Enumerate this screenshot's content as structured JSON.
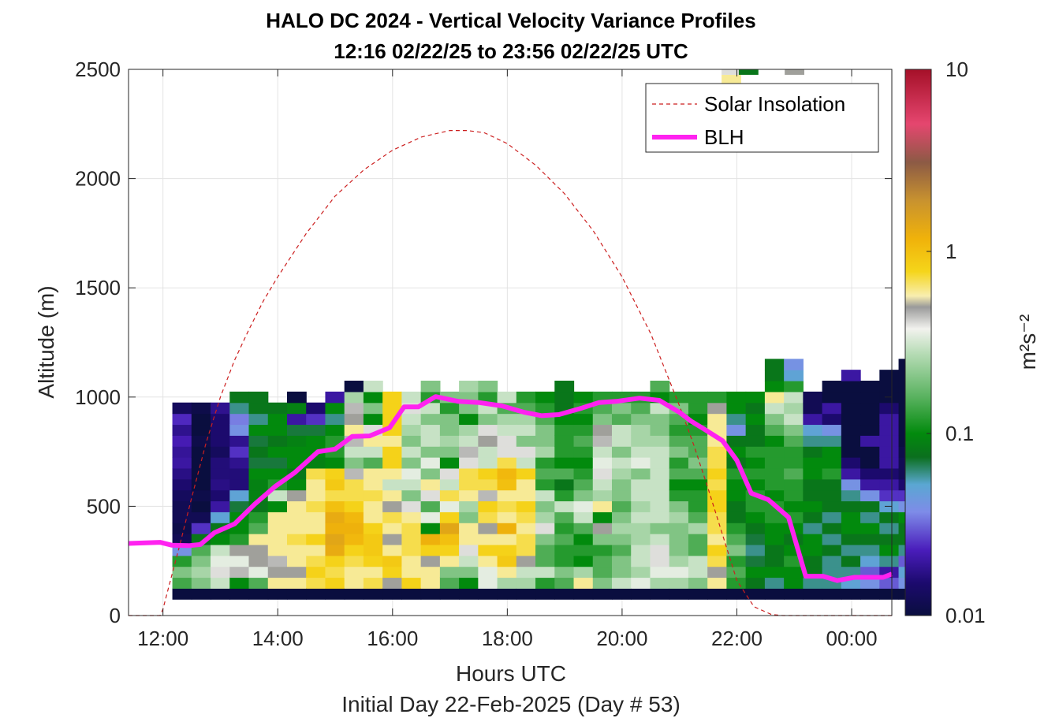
{
  "chart_data": {
    "type": "heatmap",
    "title": "HALO DC 2024 - Vertical Velocity Variance Profiles",
    "subtitle": "12:16 02/22/25 to 23:56 02/22/25  UTC",
    "xlabel": "Hours UTC",
    "xlabel2": "Initial Day 22-Feb-2025 (Day # 53)",
    "ylabel": "Altitude (m)",
    "x_unit": "hours UTC",
    "xlim": [
      11.4,
      24.7
    ],
    "ylim": [
      0,
      2500
    ],
    "x_ticks": [
      12,
      14,
      16,
      18,
      20,
      22,
      24
    ],
    "x_tick_labels": [
      "12:00",
      "14:00",
      "16:00",
      "18:00",
      "20:00",
      "22:00",
      "00:00"
    ],
    "y_ticks": [
      0,
      500,
      1000,
      1500,
      2000,
      2500
    ],
    "y_tick_labels": [
      "0",
      "500",
      "1000",
      "1500",
      "2000",
      "2500"
    ],
    "grid": true,
    "colorbar": {
      "label": "m²s⁻²",
      "scale": "log",
      "range": [
        0.01,
        10
      ],
      "ticks": [
        0.01,
        0.1,
        1,
        10
      ],
      "tick_labels": [
        "0.01",
        "0.1",
        "1",
        "10"
      ]
    },
    "legend": {
      "placement": "top-right",
      "entries": [
        {
          "label": "Solar Insolation",
          "style": "dashed",
          "color": "#cc1f1f"
        },
        {
          "label": "BLH",
          "style": "solid-thick",
          "color": "#ff22f0"
        }
      ]
    },
    "heatmap": {
      "x_start": 12.33,
      "x_step": 0.333,
      "y_start": 100,
      "y_step": 50,
      "y_labels_bottom_to_top": [
        "100",
        "150",
        "200",
        "250",
        "300",
        "350",
        "400",
        "450",
        "500",
        "550",
        "600",
        "650",
        "700",
        "750",
        "800",
        "850",
        "900",
        "950",
        "1000",
        "1050",
        "1100",
        "1150",
        "1200"
      ],
      "columns": [
        [
          0.01,
          0.14,
          0.2,
          0.12,
          0.04,
          0.012,
          0.011,
          0.012,
          0.012,
          0.013,
          0.015,
          0.017,
          0.02,
          0.019,
          0.022,
          0.018,
          0.024,
          0.013,
          null,
          null,
          null,
          null,
          null
        ],
        [
          0.01,
          0.2,
          0.25,
          0.2,
          0.15,
          0.08,
          0.025,
          0.012,
          0.01,
          0.011,
          0.01,
          0.01,
          0.01,
          0.01,
          0.011,
          0.01,
          0.01,
          0.011,
          null,
          null,
          null,
          null,
          null
        ],
        [
          0.01,
          0.3,
          0.4,
          0.35,
          0.3,
          0.1,
          0.08,
          0.05,
          0.02,
          0.015,
          0.017,
          0.016,
          0.016,
          0.013,
          0.015,
          0.015,
          0.015,
          0.018,
          null,
          null,
          null,
          null,
          null
        ],
        [
          0.01,
          0.1,
          0.45,
          0.35,
          0.5,
          0.12,
          0.1,
          0.1,
          0.07,
          0.05,
          0.016,
          0.016,
          0.018,
          0.025,
          0.018,
          0.04,
          0.035,
          0.06,
          0.08,
          null,
          null,
          null,
          null
        ],
        [
          0.01,
          0.15,
          0.35,
          0.5,
          0.5,
          0.6,
          0.15,
          0.12,
          0.08,
          0.09,
          0.09,
          0.1,
          0.07,
          0.08,
          0.07,
          0.1,
          0.06,
          0.08,
          0.08,
          null,
          null,
          null,
          null
        ],
        [
          0.01,
          0.6,
          0.5,
          0.45,
          0.6,
          0.6,
          0.6,
          0.6,
          0.1,
          0.3,
          0.12,
          0.1,
          0.07,
          0.1,
          0.08,
          0.1,
          0.1,
          0.08,
          null,
          null,
          null,
          null,
          null
        ],
        [
          0.01,
          0.6,
          0.5,
          0.6,
          0.6,
          0.7,
          0.6,
          0.6,
          0.6,
          0.5,
          0.1,
          0.08,
          0.1,
          0.1,
          0.09,
          0.07,
          0.02,
          0.09,
          0.01,
          null,
          null,
          null,
          null
        ],
        [
          0.01,
          0.7,
          0.8,
          0.7,
          0.6,
          0.8,
          0.6,
          0.6,
          0.7,
          0.6,
          0.6,
          0.7,
          0.09,
          0.1,
          0.1,
          0.07,
          0.025,
          0.015,
          null,
          null,
          null,
          null,
          null
        ],
        [
          0.01,
          0.8,
          0.7,
          0.8,
          1.3,
          1.4,
          1.2,
          1.3,
          1.0,
          0.7,
          0.9,
          0.8,
          0.1,
          0.12,
          0.12,
          0.1,
          0.06,
          0.1,
          0.02,
          null,
          null,
          null,
          null
        ],
        [
          0.01,
          0.6,
          0.6,
          0.7,
          0.8,
          1.1,
          1.2,
          1.1,
          0.8,
          0.7,
          0.7,
          0.45,
          0.2,
          0.3,
          0.45,
          0.6,
          0.5,
          0.45,
          0.25,
          0.01,
          null,
          null,
          null
        ],
        [
          0.01,
          0.7,
          0.6,
          0.8,
          0.9,
          0.9,
          0.8,
          0.6,
          0.6,
          0.7,
          0.6,
          0.6,
          0.15,
          0.3,
          0.6,
          0.4,
          0.1,
          0.2,
          0.1,
          0.3,
          null,
          null,
          null
        ],
        [
          0.01,
          0.5,
          0.8,
          0.9,
          0.6,
          0.5,
          0.6,
          0.7,
          0.5,
          0.6,
          0.3,
          0.6,
          0.8,
          0.8,
          0.6,
          0.8,
          0.8,
          0.8,
          0.8,
          null,
          null,
          null,
          null
        ],
        [
          0.01,
          0.8,
          0.6,
          0.6,
          0.7,
          0.7,
          0.7,
          0.6,
          0.4,
          0.2,
          0.3,
          0.35,
          0.2,
          0.3,
          0.2,
          0.25,
          0.3,
          0.4,
          0.3,
          null,
          null,
          null,
          null
        ],
        [
          0.01,
          0.6,
          0.6,
          0.5,
          0.8,
          1.2,
          0.1,
          0.35,
          0.15,
          0.4,
          0.6,
          0.2,
          0.35,
          0.2,
          0.3,
          0.3,
          0.2,
          0.3,
          0.12,
          0.2,
          null,
          null,
          null
        ],
        [
          0.01,
          0.15,
          0.2,
          0.6,
          0.8,
          1.0,
          1.4,
          0.8,
          0.35,
          0.7,
          0.3,
          0.4,
          0.1,
          0.2,
          0.25,
          0.2,
          0.2,
          0.12,
          0.2,
          null,
          null,
          null,
          null
        ],
        [
          0.01,
          0.1,
          0.2,
          0.3,
          0.4,
          0.6,
          0.6,
          0.2,
          0.25,
          0.6,
          0.7,
          0.7,
          0.4,
          0.45,
          0.3,
          0.25,
          0.1,
          0.2,
          0.2,
          0.25,
          null,
          null,
          null
        ],
        [
          0.01,
          0.35,
          0.35,
          0.6,
          0.8,
          0.6,
          0.5,
          0.7,
          0.8,
          0.45,
          0.7,
          0.8,
          0.3,
          0.3,
          0.5,
          0.4,
          0.2,
          0.3,
          0.12,
          0.2,
          null,
          null,
          null
        ],
        [
          0.01,
          0.25,
          0.6,
          0.9,
          0.8,
          0.6,
          1.2,
          0.6,
          0.7,
          0.6,
          1.0,
          1.1,
          0.7,
          0.4,
          0.4,
          0.3,
          0.25,
          0.15,
          0.3,
          null,
          null,
          null,
          null
        ],
        [
          0.01,
          0.25,
          0.3,
          0.5,
          0.7,
          0.7,
          0.6,
          0.7,
          0.8,
          0.6,
          0.6,
          0.8,
          0.3,
          0.4,
          0.2,
          0.3,
          0.25,
          0.15,
          0.12,
          null,
          null,
          null,
          null
        ],
        [
          0.01,
          0.12,
          0.3,
          0.15,
          0.15,
          0.2,
          0.4,
          0.25,
          0.2,
          0.3,
          0.12,
          0.15,
          0.12,
          0.25,
          0.2,
          0.2,
          0.15,
          0.12,
          0.1,
          null,
          null,
          null,
          null
        ],
        [
          0.01,
          0.15,
          0.2,
          0.12,
          0.12,
          0.15,
          0.12,
          0.15,
          0.3,
          0.12,
          0.08,
          0.15,
          0.1,
          0.12,
          0.12,
          0.12,
          0.1,
          0.08,
          0.08,
          0.08,
          null,
          null,
          null
        ],
        [
          0.01,
          0.6,
          0.25,
          0.1,
          0.12,
          0.1,
          0.15,
          0.3,
          0.35,
          0.2,
          0.15,
          0.12,
          0.1,
          0.12,
          0.15,
          0.12,
          0.1,
          0.12,
          0.1,
          null,
          null,
          null,
          null
        ],
        [
          0.01,
          0.2,
          0.15,
          0.15,
          0.12,
          0.2,
          0.5,
          0.1,
          0.6,
          0.25,
          0.3,
          0.4,
          0.35,
          0.3,
          0.45,
          0.5,
          0.2,
          0.15,
          0.12,
          null,
          null,
          null,
          null
        ],
        [
          0.01,
          0.3,
          0.2,
          0.2,
          0.15,
          0.2,
          0.25,
          0.2,
          0.15,
          0.2,
          0.2,
          0.25,
          0.3,
          0.2,
          0.3,
          0.3,
          0.15,
          0.2,
          0.12,
          null,
          null,
          null,
          null
        ],
        [
          0.01,
          0.35,
          0.25,
          0.3,
          0.3,
          0.25,
          0.25,
          0.3,
          0.25,
          0.3,
          0.3,
          0.2,
          0.35,
          0.3,
          0.25,
          0.25,
          0.2,
          0.15,
          0.12,
          null,
          null,
          null,
          null
        ],
        [
          0.01,
          0.25,
          0.35,
          0.4,
          0.4,
          0.3,
          0.2,
          0.3,
          0.3,
          0.3,
          0.3,
          0.3,
          0.3,
          0.3,
          0.25,
          0.2,
          0.2,
          0.3,
          0.1,
          0.15,
          null,
          null,
          null
        ],
        [
          0.01,
          0.25,
          0.35,
          0.25,
          0.2,
          0.2,
          0.2,
          0.25,
          0.2,
          0.12,
          0.1,
          0.15,
          0.12,
          0.2,
          0.15,
          0.12,
          0.15,
          0.2,
          0.12,
          null,
          null,
          null,
          null
        ],
        [
          0.01,
          0.2,
          0.3,
          0.3,
          0.15,
          0.15,
          0.25,
          0.15,
          0.12,
          0.12,
          0.1,
          0.15,
          0.2,
          0.15,
          0.15,
          0.12,
          0.1,
          0.12,
          0.12,
          null,
          null,
          null,
          null
        ],
        [
          0.01,
          0.6,
          0.5,
          0.7,
          0.8,
          0.6,
          0.7,
          0.7,
          0.8,
          0.8,
          0.7,
          0.8,
          0.7,
          0.7,
          0.6,
          0.6,
          0.6,
          0.5,
          0.12,
          null,
          null,
          null,
          null
        ],
        [
          0.01,
          0.12,
          0.15,
          0.12,
          0.2,
          0.15,
          0.12,
          0.08,
          0.08,
          0.1,
          0.1,
          0.12,
          0.08,
          0.1,
          0.08,
          0.04,
          0.06,
          0.1,
          0.1,
          null,
          null,
          null,
          null
        ],
        [
          0.01,
          0.08,
          0.1,
          0.07,
          0.06,
          0.07,
          0.08,
          0.1,
          0.12,
          0.12,
          0.1,
          0.12,
          0.1,
          0.12,
          0.08,
          0.08,
          0.1,
          0.08,
          0.1,
          null,
          null,
          null,
          null
        ],
        [
          0.01,
          0.06,
          0.1,
          0.08,
          0.08,
          0.1,
          0.1,
          0.12,
          0.12,
          0.1,
          0.12,
          0.12,
          0.12,
          0.12,
          0.1,
          0.15,
          0.2,
          0.3,
          0.6,
          0.1,
          0.08,
          0.08,
          null
        ],
        [
          0.01,
          0.1,
          0.1,
          0.12,
          0.1,
          0.08,
          0.1,
          0.12,
          0.1,
          0.12,
          0.12,
          0.15,
          0.12,
          0.12,
          0.15,
          0.2,
          0.3,
          0.25,
          0.3,
          0.12,
          0.05,
          0.04,
          null
        ],
        [
          0.01,
          0.06,
          0.08,
          0.08,
          0.1,
          0.1,
          0.06,
          0.08,
          0.1,
          0.08,
          0.08,
          0.1,
          0.1,
          0.08,
          0.06,
          0.05,
          0.02,
          0.012,
          0.012,
          null,
          null,
          null,
          null
        ],
        [
          0.01,
          0.06,
          0.06,
          0.06,
          0.08,
          0.06,
          0.08,
          0.06,
          0.08,
          0.08,
          0.08,
          0.12,
          0.1,
          0.1,
          0.06,
          0.04,
          0.015,
          0.02,
          0.01,
          0.01,
          null,
          null,
          null
        ],
        [
          0.01,
          0.05,
          0.06,
          0.08,
          0.06,
          0.08,
          0.1,
          0.1,
          0.08,
          0.06,
          0.04,
          0.02,
          0.015,
          0.01,
          0.01,
          0.01,
          0.01,
          0.01,
          0.01,
          0.01,
          0.02,
          null,
          null
        ],
        [
          0.01,
          0.04,
          0.03,
          0.05,
          0.06,
          0.08,
          0.1,
          0.06,
          0.08,
          0.04,
          0.02,
          0.015,
          0.01,
          0.01,
          0.02,
          0.01,
          0.01,
          0.01,
          0.01,
          0.01,
          null,
          null,
          null
        ],
        [
          0.01,
          0.03,
          0.02,
          0.06,
          0.1,
          0.08,
          0.06,
          0.08,
          0.05,
          0.025,
          0.02,
          0.015,
          0.02,
          0.02,
          0.02,
          0.02,
          0.02,
          0.015,
          0.01,
          0.01,
          0.01,
          null,
          null
        ],
        [
          0.01,
          0.04,
          0.05,
          0.03,
          0.06,
          0.08,
          0.08,
          0.1,
          0.04,
          0.025,
          0.015,
          0.012,
          0.012,
          0.011,
          0.01,
          0.01,
          0.01,
          0.01,
          0.01,
          0.01,
          0.01,
          0.01,
          null
        ]
      ],
      "top_cells": [
        {
          "x": 21.9,
          "y": 2450,
          "value": 0.6
        },
        {
          "x": 21.9,
          "y": 2500,
          "value": 0.4
        },
        {
          "x": 22.2,
          "y": 2500,
          "value": 0.08
        },
        {
          "x": 23.0,
          "y": 2500,
          "value": 0.5
        }
      ]
    },
    "series": [
      {
        "name": "Solar Insolation",
        "x": [
          11.4,
          11.95,
          12.0,
          12.1,
          12.3,
          12.5,
          12.75,
          13.0,
          13.25,
          13.5,
          13.75,
          14.0,
          14.5,
          15.0,
          15.5,
          16.0,
          16.5,
          17.0,
          17.3,
          17.6,
          18.0,
          18.5,
          19.0,
          19.5,
          20.0,
          20.5,
          21.0,
          21.25,
          21.5,
          21.75,
          22.0,
          22.3,
          22.6,
          22.8,
          23.0,
          24.7
        ],
        "y": [
          0,
          0,
          30,
          130,
          330,
          540,
          790,
          1000,
          1170,
          1310,
          1440,
          1550,
          1750,
          1920,
          2040,
          2130,
          2190,
          2220,
          2220,
          2210,
          2160,
          2060,
          1930,
          1760,
          1550,
          1290,
          960,
          780,
          580,
          370,
          160,
          40,
          5,
          0,
          0,
          0
        ]
      },
      {
        "name": "BLH",
        "x": [
          11.4,
          11.95,
          12.15,
          12.45,
          12.65,
          12.9,
          13.25,
          13.6,
          13.95,
          14.3,
          14.7,
          15.0,
          15.3,
          15.6,
          15.95,
          16.2,
          16.45,
          16.75,
          17.15,
          17.5,
          17.9,
          18.3,
          18.6,
          18.9,
          19.3,
          19.6,
          19.9,
          20.3,
          20.65,
          21.0,
          21.2,
          21.45,
          21.75,
          22.0,
          22.25,
          22.55,
          22.9,
          23.2,
          23.5,
          23.75,
          24.05,
          24.35,
          24.55,
          24.7
        ],
        "y": [
          330,
          335,
          322,
          320,
          325,
          380,
          420,
          510,
          590,
          655,
          750,
          762,
          820,
          822,
          860,
          955,
          955,
          1002,
          980,
          975,
          960,
          930,
          915,
          920,
          950,
          975,
          980,
          995,
          985,
          930,
          890,
          850,
          800,
          710,
          560,
          530,
          450,
          180,
          180,
          160,
          175,
          175,
          175,
          190
        ]
      }
    ]
  }
}
